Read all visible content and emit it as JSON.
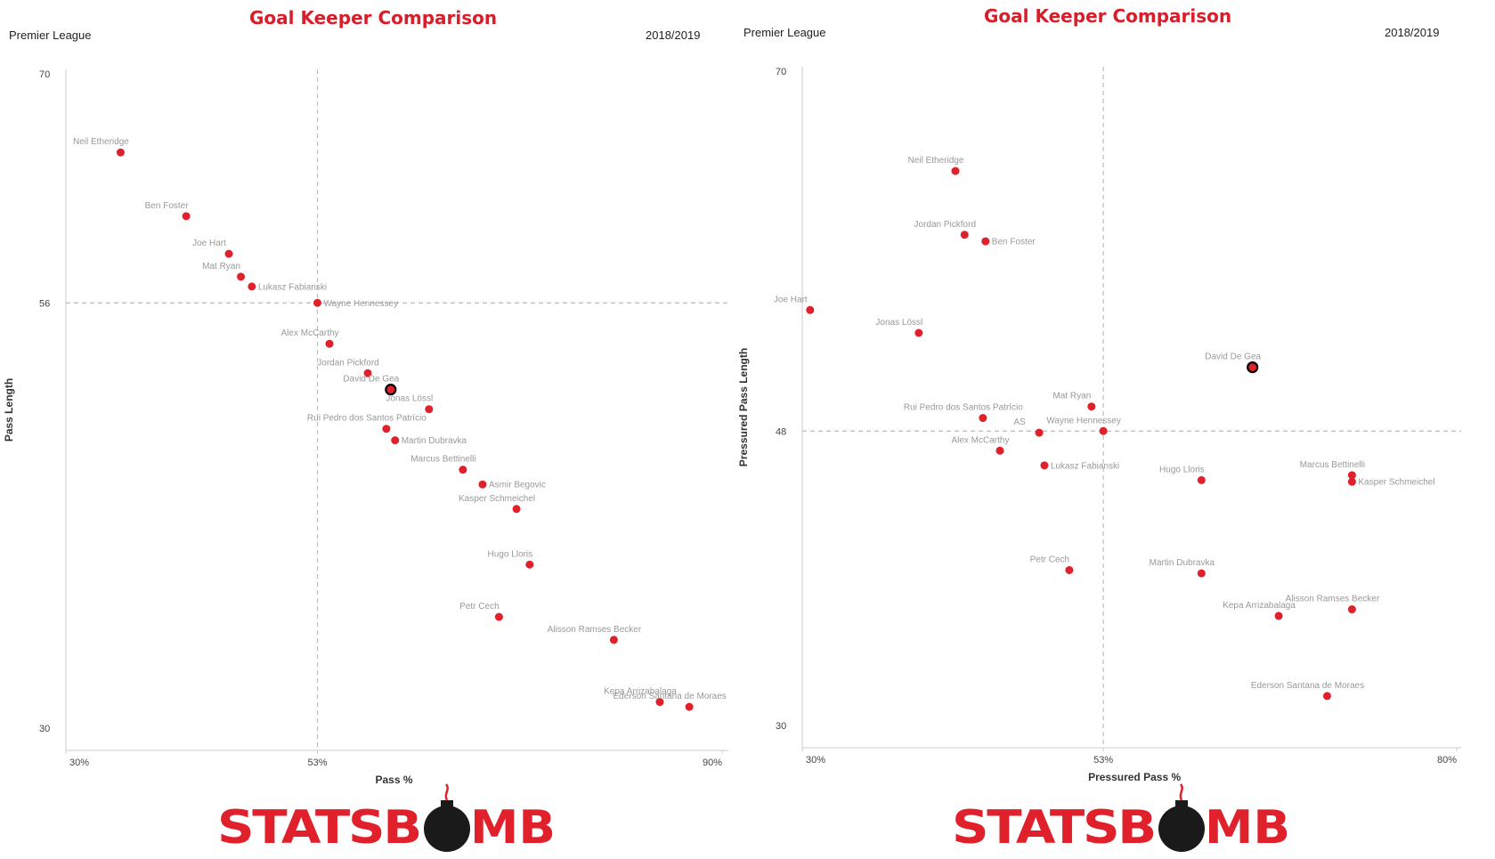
{
  "brand": {
    "logo_text": "STATSBOMB",
    "logo_color": "#e0202a",
    "bomb_color": "#1a1a1a"
  },
  "colors": {
    "point": "#e0202a",
    "highlight_stroke": "#000000",
    "title": "#d81e2a",
    "ref_line": "#bbbbbb"
  },
  "chart_data": [
    {
      "type": "scatter",
      "title": "Goal Keeper Comparison",
      "league": "Premier League",
      "season": "2018/2019",
      "xlabel": "Pass %",
      "ylabel": "Pass Length",
      "xlim": [
        30,
        90
      ],
      "ylim": [
        30,
        70
      ],
      "x_ticks": [
        "30%",
        "53%",
        "90%"
      ],
      "y_ticks": [
        "70",
        "56",
        "30"
      ],
      "ref_x": 53,
      "ref_y": 56,
      "highlight": "David De Gea",
      "points": [
        {
          "name": "Neil Etheridge",
          "x": 35.0,
          "y": 65.2,
          "label": "above"
        },
        {
          "name": "Ben Foster",
          "x": 41.0,
          "y": 61.3,
          "label": "above"
        },
        {
          "name": "Joe Hart",
          "x": 44.9,
          "y": 59.0,
          "label": "above"
        },
        {
          "name": "Mat Ryan",
          "x": 46.0,
          "y": 57.6,
          "label": "above"
        },
        {
          "name": "Lukasz Fabianski",
          "x": 47.0,
          "y": 57.0,
          "label": "right"
        },
        {
          "name": "Wayne Hennessey",
          "x": 53.0,
          "y": 56.0,
          "label": "right"
        },
        {
          "name": "Alex McCarthy",
          "x": 54.1,
          "y": 53.5,
          "label": "above"
        },
        {
          "name": "Jordan Pickford",
          "x": 57.6,
          "y": 51.7,
          "label": "above"
        },
        {
          "name": "David De Gea",
          "x": 59.7,
          "y": 50.7,
          "label": "above"
        },
        {
          "name": "Jonas Lössl",
          "x": 63.2,
          "y": 49.5,
          "label": "above"
        },
        {
          "name": "Rui Pedro dos Santos Patrício",
          "x": 59.3,
          "y": 48.3,
          "label": "above"
        },
        {
          "name": "Martin Dubravka",
          "x": 60.1,
          "y": 47.6,
          "label": "right"
        },
        {
          "name": "Marcus Bettinelli",
          "x": 66.3,
          "y": 45.8,
          "label": "above"
        },
        {
          "name": "Asmir Begovic",
          "x": 68.1,
          "y": 44.9,
          "label": "right"
        },
        {
          "name": "Kasper Schmeichel",
          "x": 71.2,
          "y": 43.4,
          "label": "above"
        },
        {
          "name": "Hugo Lloris",
          "x": 72.4,
          "y": 40.0,
          "label": "above"
        },
        {
          "name": "Petr Cech",
          "x": 69.6,
          "y": 36.8,
          "label": "above"
        },
        {
          "name": "Alisson Ramses Becker",
          "x": 80.1,
          "y": 35.4,
          "label": "above"
        },
        {
          "name": "Kepa Arrizabalaga",
          "x": 84.3,
          "y": 31.6,
          "label": "above"
        },
        {
          "name": "Ederson Santana de Moraes",
          "x": 87.0,
          "y": 31.3,
          "label": "above"
        }
      ]
    },
    {
      "type": "scatter",
      "title": "Goal Keeper Comparison",
      "league": "Premier League",
      "season": "2018/2019",
      "xlabel": "Pressured Pass %",
      "ylabel": "Pressured Pass Length",
      "xlim": [
        30,
        80
      ],
      "ylim": [
        30,
        70
      ],
      "x_ticks": [
        "30%",
        "53%",
        "80%"
      ],
      "y_ticks": [
        "70",
        "48",
        "30"
      ],
      "ref_x": 53,
      "ref_y": 48,
      "highlight": "David De Gea",
      "points": [
        {
          "name": "Neil Etheridge",
          "x": 41.7,
          "y": 63.9,
          "label": "above"
        },
        {
          "name": "Jordan Pickford",
          "x": 42.4,
          "y": 60.0,
          "label": "above"
        },
        {
          "name": "Ben Foster",
          "x": 44.0,
          "y": 59.6,
          "label": "right"
        },
        {
          "name": "Joe Hart",
          "x": 30.6,
          "y": 55.4,
          "label": "above"
        },
        {
          "name": "Jonas Lössl",
          "x": 38.9,
          "y": 54.0,
          "label": "above"
        },
        {
          "name": "David De Gea",
          "x": 64.4,
          "y": 51.9,
          "label": "above"
        },
        {
          "name": "Mat Ryan",
          "x": 52.1,
          "y": 49.5,
          "label": "above"
        },
        {
          "name": "Rui Pedro dos Santos Patrício",
          "x": 43.8,
          "y": 48.8,
          "label": "above"
        },
        {
          "name": "AS",
          "x": 48.1,
          "y": 47.9,
          "label": "above"
        },
        {
          "name": "Wayne Hennessey",
          "x": 53.0,
          "y": 48.0,
          "label": "above"
        },
        {
          "name": "Alex McCarthy",
          "x": 45.1,
          "y": 46.8,
          "label": "above"
        },
        {
          "name": "Lukasz Fabianski",
          "x": 48.5,
          "y": 45.9,
          "label": "right"
        },
        {
          "name": "Hugo Lloris",
          "x": 60.5,
          "y": 45.0,
          "label": "above"
        },
        {
          "name": "Marcus Bettinelli",
          "x": 72.0,
          "y": 45.3,
          "label": "above"
        },
        {
          "name": "Kasper Schmeichel",
          "x": 72.0,
          "y": 44.9,
          "label": "right"
        },
        {
          "name": "Petr Cech",
          "x": 50.4,
          "y": 39.5,
          "label": "above"
        },
        {
          "name": "Martin Dubravka",
          "x": 60.5,
          "y": 39.3,
          "label": "above"
        },
        {
          "name": "Alisson Ramses Becker",
          "x": 72.0,
          "y": 37.1,
          "label": "above"
        },
        {
          "name": "Kepa Arrizabalaga",
          "x": 66.4,
          "y": 36.7,
          "label": "above"
        },
        {
          "name": "Ederson Santana de Moraes",
          "x": 70.1,
          "y": 31.8,
          "label": "above"
        }
      ]
    }
  ]
}
